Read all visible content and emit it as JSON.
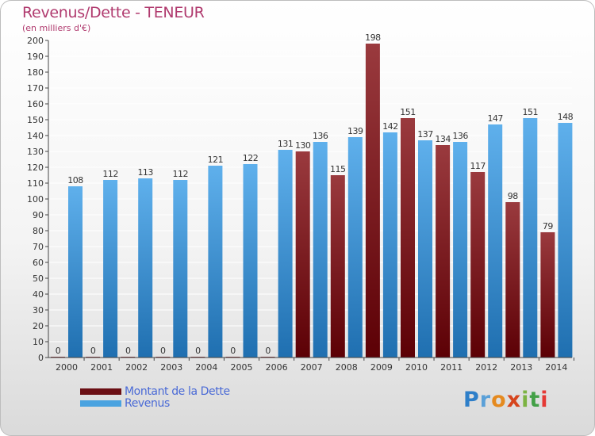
{
  "header": {
    "title": "Revenus/Dette - TENEUR",
    "subtitle": "(en milliers d'€)"
  },
  "legend": {
    "items": [
      {
        "label": "Montant de la Dette",
        "color": "#6b0f14"
      },
      {
        "label": "Revenus",
        "color": "#4aa3e0"
      }
    ]
  },
  "logo": {
    "text": "Proxiti"
  },
  "colors": {
    "dette_top": "#9a3a3e",
    "dette_bottom": "#5c0005",
    "revenus_top": "#5fb0ec",
    "revenus_bottom": "#1f6fb0",
    "title": "#b03a6e",
    "legend_text": "#4a6ad6"
  },
  "chart_data": {
    "type": "bar",
    "title": "Revenus/Dette - TENEUR",
    "subtitle": "(en milliers d'€)",
    "categories": [
      "2000",
      "2001",
      "2002",
      "2003",
      "2004",
      "2005",
      "2006",
      "2007",
      "2008",
      "2009",
      "2010",
      "2011",
      "2012",
      "2013",
      "2014"
    ],
    "series": [
      {
        "name": "Montant de la Dette",
        "values": [
          0,
          0,
          0,
          0,
          0,
          0,
          0,
          130,
          115,
          198,
          151,
          134,
          117,
          98,
          79
        ]
      },
      {
        "name": "Revenus",
        "values": [
          108,
          112,
          113,
          112,
          121,
          122,
          131,
          136,
          139,
          142,
          137,
          136,
          147,
          151,
          148
        ]
      }
    ],
    "ylim": [
      0,
      200
    ],
    "yticks": [
      0,
      10,
      20,
      30,
      40,
      50,
      60,
      70,
      80,
      90,
      100,
      110,
      120,
      130,
      140,
      150,
      160,
      170,
      180,
      190,
      200
    ],
    "grid": true,
    "legend_position": "bottom-left"
  }
}
